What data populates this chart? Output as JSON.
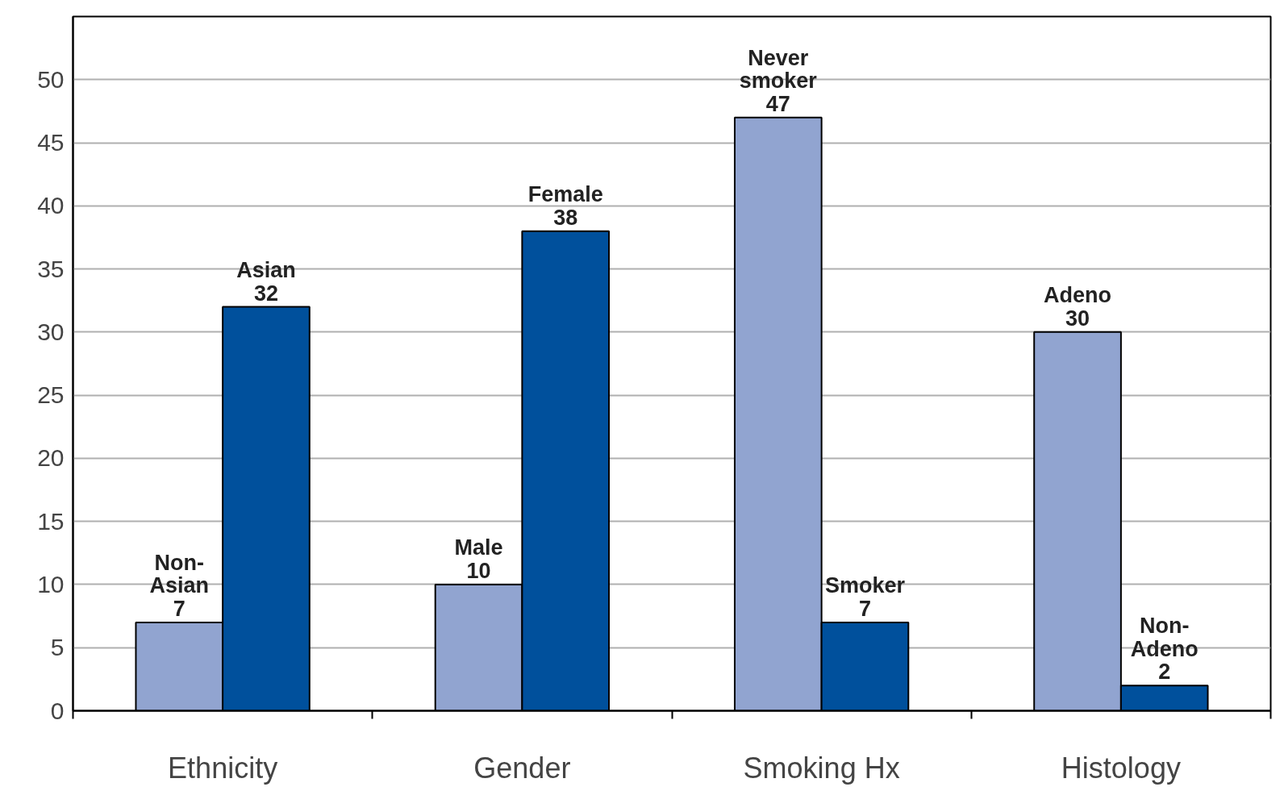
{
  "chart_data": {
    "type": "bar",
    "categories": [
      "Ethnicity",
      "Gender",
      "Smoking Hx",
      "Histology"
    ],
    "series": [
      {
        "color": "#91a4d0",
        "values": [
          7,
          10,
          47,
          30
        ],
        "value_labels": [
          "Non-\nAsian\n7",
          "Male\n10",
          "Never\nsmoker\n47",
          "Adeno\n30"
        ]
      },
      {
        "color": "#00509c",
        "values": [
          32,
          38,
          7,
          2
        ],
        "value_labels": [
          "Asian\n32",
          "Female\n38",
          "Smoker\n7",
          "Non-\nAdeno\n2"
        ]
      }
    ],
    "ylim": [
      0,
      55
    ],
    "yticks": [
      0,
      5,
      10,
      15,
      20,
      25,
      30,
      35,
      40,
      45,
      50
    ],
    "grid": "y"
  }
}
